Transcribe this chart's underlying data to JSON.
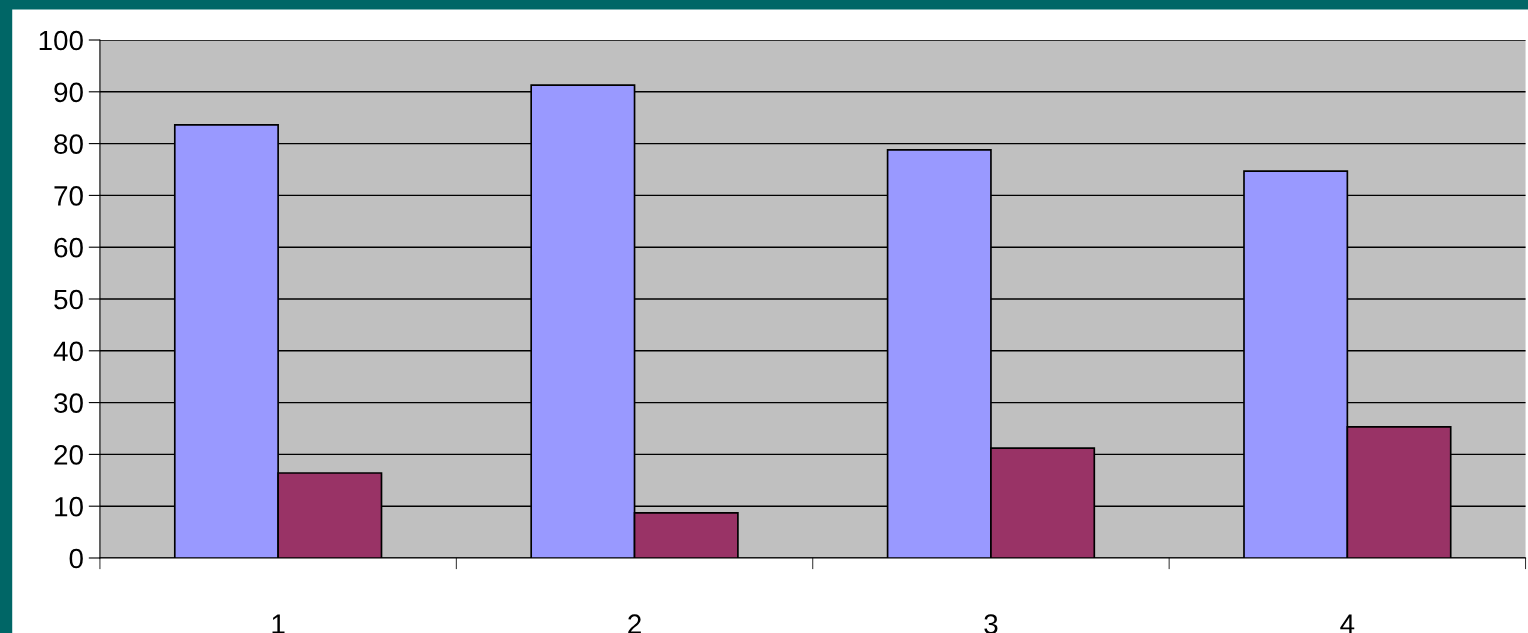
{
  "chart_data": {
    "type": "bar",
    "categories": [
      "1",
      "2",
      "3",
      "4"
    ],
    "series": [
      {
        "color": "#9999ff",
        "values": [
          83.6,
          91.3,
          78.8,
          74.7
        ]
      },
      {
        "color": "#993366",
        "values": [
          16.4,
          8.7,
          21.2,
          25.3
        ]
      }
    ],
    "ylim": [
      0,
      100
    ],
    "yticks": [
      0,
      10,
      20,
      30,
      40,
      50,
      60,
      70,
      80,
      90,
      100
    ],
    "grid": "y",
    "legend": false
  }
}
